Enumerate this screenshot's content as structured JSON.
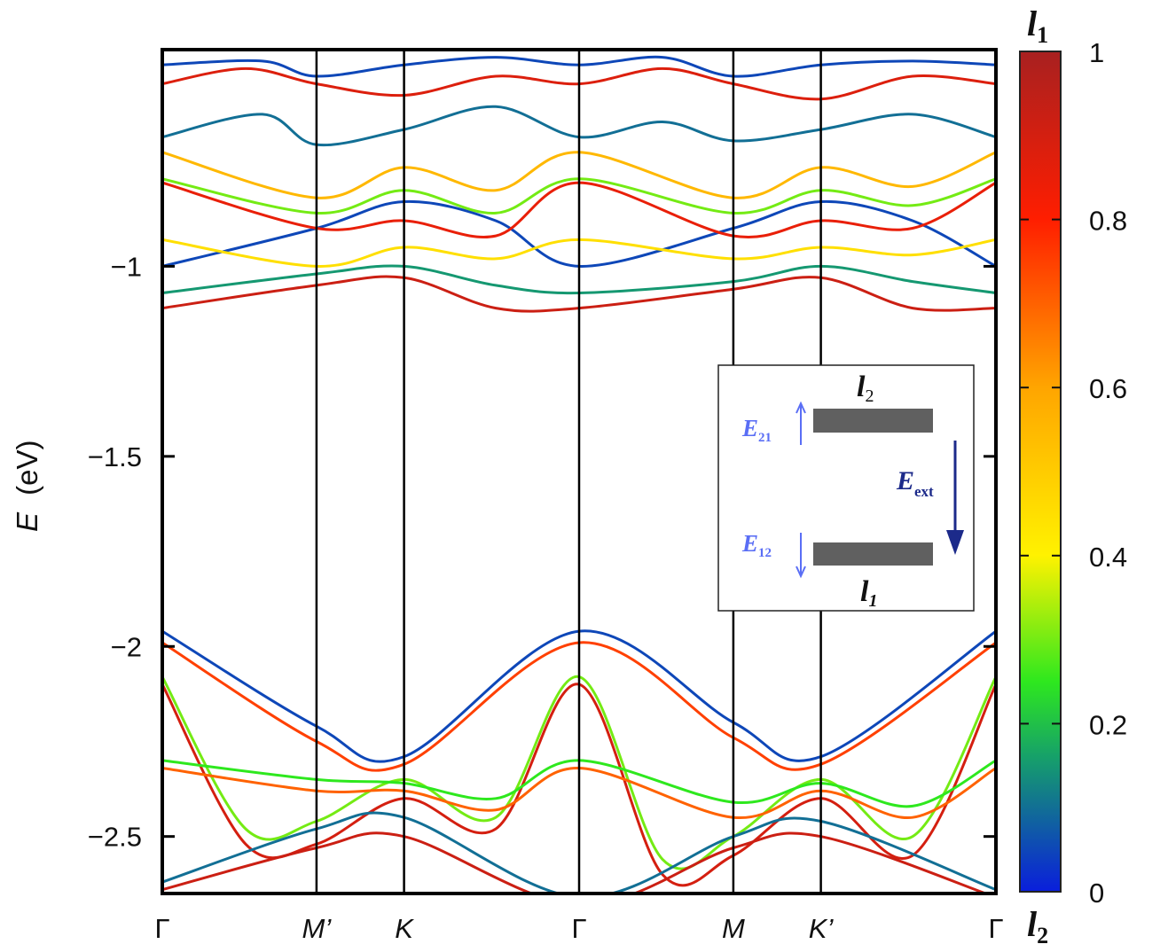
{
  "chart_data": {
    "type": "line",
    "title": "",
    "ylabel": "E",
    "ylabel_unit": "(eV)",
    "ylim": [
      -2.65,
      -0.43
    ],
    "yticks": [
      -1,
      -1.5,
      -2,
      -2.5
    ],
    "ytick_labels": [
      "−1",
      "−1.5",
      "−2",
      "−2.5"
    ],
    "x_points": [
      "Γ",
      "M’",
      "K",
      "Γ",
      "M",
      "K’",
      "Γ"
    ],
    "x_point_positions": [
      0,
      0.185,
      0.29,
      0.5,
      0.685,
      0.79,
      1.0
    ],
    "color_scale": {
      "label_top": "l",
      "label_top_sub": "1",
      "label_bottom": "l",
      "label_bottom_sub": "2",
      "ticks": [
        "0",
        "0.2",
        "0.4",
        "0.6",
        "0.8",
        "1"
      ],
      "tick_values": [
        0,
        0.2,
        0.4,
        0.6,
        0.8,
        1.0
      ],
      "colors": [
        "#0a1edc",
        "#16a06a",
        "#2ee81e",
        "#fff200",
        "#ffa500",
        "#ff1e00",
        "#a82020"
      ]
    },
    "series": [
      {
        "band": "valence-1",
        "weight": 0.05,
        "points": [
          [
            0,
            -1.96
          ],
          [
            0.185,
            -2.21
          ],
          [
            0.29,
            -2.29
          ],
          [
            0.5,
            -1.96
          ],
          [
            0.685,
            -2.2
          ],
          [
            0.79,
            -2.29
          ],
          [
            1.0,
            -1.96
          ]
        ]
      },
      {
        "band": "valence-2",
        "weight": 0.75,
        "points": [
          [
            0,
            -1.99
          ],
          [
            0.185,
            -2.25
          ],
          [
            0.29,
            -2.31
          ],
          [
            0.5,
            -1.99
          ],
          [
            0.685,
            -2.24
          ],
          [
            0.79,
            -2.31
          ],
          [
            1.0,
            -1.99
          ]
        ]
      },
      {
        "band": "valence-3",
        "weight": 0.3,
        "points": [
          [
            0,
            -2.08
          ],
          [
            0.1,
            -2.48
          ],
          [
            0.185,
            -2.46
          ],
          [
            0.29,
            -2.35
          ],
          [
            0.4,
            -2.45
          ],
          [
            0.5,
            -2.08
          ],
          [
            0.6,
            -2.56
          ],
          [
            0.685,
            -2.5
          ],
          [
            0.79,
            -2.35
          ],
          [
            0.9,
            -2.5
          ],
          [
            1.0,
            -2.08
          ]
        ]
      },
      {
        "band": "valence-4",
        "weight": 0.9,
        "points": [
          [
            0,
            -2.1
          ],
          [
            0.1,
            -2.52
          ],
          [
            0.185,
            -2.52
          ],
          [
            0.29,
            -2.4
          ],
          [
            0.4,
            -2.48
          ],
          [
            0.5,
            -2.1
          ],
          [
            0.6,
            -2.6
          ],
          [
            0.685,
            -2.55
          ],
          [
            0.79,
            -2.4
          ],
          [
            0.9,
            -2.55
          ],
          [
            1.0,
            -2.1
          ]
        ]
      },
      {
        "band": "valence-5",
        "weight": 0.25,
        "points": [
          [
            0,
            -2.3
          ],
          [
            0.185,
            -2.35
          ],
          [
            0.29,
            -2.36
          ],
          [
            0.4,
            -2.4
          ],
          [
            0.5,
            -2.3
          ],
          [
            0.685,
            -2.41
          ],
          [
            0.79,
            -2.36
          ],
          [
            0.9,
            -2.42
          ],
          [
            1.0,
            -2.3
          ]
        ]
      },
      {
        "band": "valence-6",
        "weight": 0.7,
        "points": [
          [
            0,
            -2.32
          ],
          [
            0.185,
            -2.38
          ],
          [
            0.29,
            -2.38
          ],
          [
            0.4,
            -2.43
          ],
          [
            0.5,
            -2.32
          ],
          [
            0.685,
            -2.45
          ],
          [
            0.79,
            -2.38
          ],
          [
            0.9,
            -2.45
          ],
          [
            1.0,
            -2.32
          ]
        ]
      },
      {
        "band": "valence-7",
        "weight": 0.1,
        "points": [
          [
            0,
            -2.62
          ],
          [
            0.185,
            -2.48
          ],
          [
            0.29,
            -2.45
          ],
          [
            0.5,
            -2.66
          ],
          [
            0.685,
            -2.5
          ],
          [
            0.79,
            -2.46
          ],
          [
            1.0,
            -2.64
          ]
        ]
      },
      {
        "band": "valence-8",
        "weight": 0.92,
        "points": [
          [
            0,
            -2.64
          ],
          [
            0.185,
            -2.53
          ],
          [
            0.29,
            -2.5
          ],
          [
            0.5,
            -2.68
          ],
          [
            0.685,
            -2.53
          ],
          [
            0.79,
            -2.5
          ],
          [
            1.0,
            -2.66
          ]
        ]
      },
      {
        "band": "conduction-1",
        "weight": 0.92,
        "points": [
          [
            0,
            -1.11
          ],
          [
            0.185,
            -1.05
          ],
          [
            0.29,
            -1.03
          ],
          [
            0.4,
            -1.11
          ],
          [
            0.5,
            -1.11
          ],
          [
            0.685,
            -1.06
          ],
          [
            0.79,
            -1.03
          ],
          [
            0.9,
            -1.11
          ],
          [
            1.0,
            -1.11
          ]
        ]
      },
      {
        "band": "conduction-2",
        "weight": 0.15,
        "points": [
          [
            0,
            -1.07
          ],
          [
            0.185,
            -1.02
          ],
          [
            0.29,
            -1.0
          ],
          [
            0.4,
            -1.05
          ],
          [
            0.5,
            -1.07
          ],
          [
            0.685,
            -1.04
          ],
          [
            0.79,
            -1.0
          ],
          [
            0.9,
            -1.04
          ],
          [
            1.0,
            -1.07
          ]
        ]
      },
      {
        "band": "conduction-3",
        "weight": 0.05,
        "points": [
          [
            0,
            -1.0
          ],
          [
            0.185,
            -0.9
          ],
          [
            0.29,
            -0.83
          ],
          [
            0.4,
            -0.88
          ],
          [
            0.5,
            -1.0
          ],
          [
            0.685,
            -0.9
          ],
          [
            0.79,
            -0.83
          ],
          [
            0.9,
            -0.88
          ],
          [
            1.0,
            -1.0
          ]
        ]
      },
      {
        "band": "conduction-4",
        "weight": 0.45,
        "points": [
          [
            0,
            -0.93
          ],
          [
            0.185,
            -1.0
          ],
          [
            0.29,
            -0.95
          ],
          [
            0.4,
            -0.98
          ],
          [
            0.5,
            -0.93
          ],
          [
            0.685,
            -0.98
          ],
          [
            0.79,
            -0.95
          ],
          [
            0.9,
            -0.97
          ],
          [
            1.0,
            -0.93
          ]
        ]
      },
      {
        "band": "conduction-5",
        "weight": 0.85,
        "points": [
          [
            0,
            -0.78
          ],
          [
            0.185,
            -0.9
          ],
          [
            0.29,
            -0.88
          ],
          [
            0.4,
            -0.92
          ],
          [
            0.5,
            -0.78
          ],
          [
            0.685,
            -0.92
          ],
          [
            0.79,
            -0.88
          ],
          [
            0.9,
            -0.9
          ],
          [
            1.0,
            -0.78
          ]
        ]
      },
      {
        "band": "conduction-6",
        "weight": 0.3,
        "points": [
          [
            0,
            -0.77
          ],
          [
            0.185,
            -0.86
          ],
          [
            0.29,
            -0.8
          ],
          [
            0.4,
            -0.86
          ],
          [
            0.5,
            -0.77
          ],
          [
            0.685,
            -0.86
          ],
          [
            0.79,
            -0.8
          ],
          [
            0.9,
            -0.84
          ],
          [
            1.0,
            -0.77
          ]
        ]
      },
      {
        "band": "conduction-7",
        "weight": 0.55,
        "points": [
          [
            0,
            -0.7
          ],
          [
            0.185,
            -0.82
          ],
          [
            0.29,
            -0.74
          ],
          [
            0.4,
            -0.8
          ],
          [
            0.5,
            -0.7
          ],
          [
            0.685,
            -0.82
          ],
          [
            0.79,
            -0.74
          ],
          [
            0.9,
            -0.79
          ],
          [
            1.0,
            -0.7
          ]
        ]
      },
      {
        "band": "conduction-8",
        "weight": 0.1,
        "points": [
          [
            0,
            -0.66
          ],
          [
            0.12,
            -0.6
          ],
          [
            0.185,
            -0.68
          ],
          [
            0.29,
            -0.64
          ],
          [
            0.4,
            -0.58
          ],
          [
            0.5,
            -0.66
          ],
          [
            0.6,
            -0.62
          ],
          [
            0.685,
            -0.67
          ],
          [
            0.79,
            -0.64
          ],
          [
            0.9,
            -0.6
          ],
          [
            1.0,
            -0.66
          ]
        ]
      },
      {
        "band": "conduction-9",
        "weight": 0.88,
        "points": [
          [
            0,
            -0.52
          ],
          [
            0.1,
            -0.48
          ],
          [
            0.185,
            -0.52
          ],
          [
            0.29,
            -0.55
          ],
          [
            0.4,
            -0.5
          ],
          [
            0.5,
            -0.52
          ],
          [
            0.6,
            -0.48
          ],
          [
            0.685,
            -0.52
          ],
          [
            0.79,
            -0.56
          ],
          [
            0.9,
            -0.5
          ],
          [
            1.0,
            -0.52
          ]
        ]
      },
      {
        "band": "conduction-10",
        "weight": 0.05,
        "points": [
          [
            0,
            -0.47
          ],
          [
            0.12,
            -0.46
          ],
          [
            0.185,
            -0.5
          ],
          [
            0.29,
            -0.47
          ],
          [
            0.4,
            -0.45
          ],
          [
            0.5,
            -0.47
          ],
          [
            0.6,
            -0.45
          ],
          [
            0.685,
            -0.5
          ],
          [
            0.79,
            -0.47
          ],
          [
            0.9,
            -0.46
          ],
          [
            1.0,
            -0.47
          ]
        ]
      }
    ]
  },
  "inset": {
    "top_layer": "l",
    "top_layer_sub": "2",
    "bottom_layer": "l",
    "bottom_layer_sub": "1",
    "field_21": "E",
    "field_21_sub": "21",
    "field_12": "E",
    "field_12_sub": "12",
    "field_ext": "E",
    "field_ext_sub": "ext",
    "colors": {
      "field_light": "#5a6ef5",
      "field_dark": "#1c2a8a",
      "slab": "#606060"
    }
  }
}
